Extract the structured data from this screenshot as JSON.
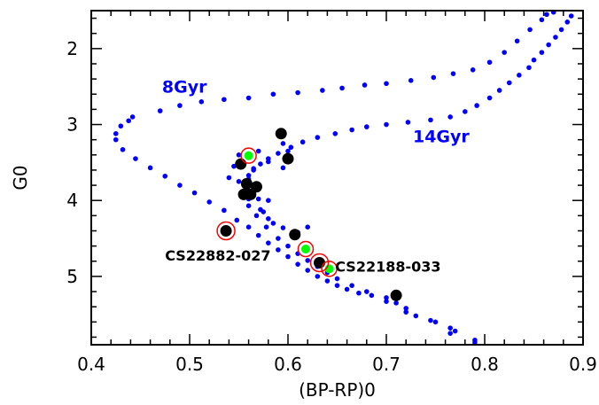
{
  "chart_data": {
    "type": "scatter",
    "xlabel": "(BP-RP)0",
    "ylabel": "G0",
    "xlim": [
      0.4,
      0.9
    ],
    "ylim": [
      5.9,
      1.5
    ],
    "y_inverted": true,
    "grid": false,
    "x_ticks": [
      0.4,
      0.5,
      0.6,
      0.7,
      0.8,
      0.9
    ],
    "x_tick_labels": [
      "0.4",
      "0.5",
      "0.6",
      "0.7",
      "0.8",
      "0.9"
    ],
    "y_ticks": [
      2,
      3,
      4,
      5
    ],
    "y_tick_labels": [
      "2",
      "3",
      "4",
      "5"
    ],
    "colors": {
      "isochrone": "#0000ff",
      "stars": "#000000",
      "highlight_fill": "#00ff00",
      "highlight_ring": "#ff0000"
    },
    "isochrone_labels": [
      {
        "text": "8Gyr",
        "x": 0.472,
        "y": 2.5
      },
      {
        "text": "14Gyr",
        "x": 0.727,
        "y": 3.15
      }
    ],
    "series": [
      {
        "style": "small-blue-dots",
        "points": [
          [
            0.79,
            5.87
          ],
          [
            0.77,
            5.72
          ],
          [
            0.765,
            5.75
          ],
          [
            0.75,
            5.6
          ],
          [
            0.73,
            5.52
          ],
          [
            0.72,
            5.42
          ],
          [
            0.71,
            5.35
          ],
          [
            0.7,
            5.28
          ],
          [
            0.685,
            5.25
          ],
          [
            0.672,
            5.22
          ],
          [
            0.66,
            5.17
          ],
          [
            0.65,
            5.12
          ],
          [
            0.64,
            5.06
          ],
          [
            0.63,
            5.0
          ],
          [
            0.62,
            4.92
          ],
          [
            0.61,
            4.84
          ],
          [
            0.6,
            4.74
          ],
          [
            0.59,
            4.65
          ],
          [
            0.58,
            4.56
          ],
          [
            0.57,
            4.46
          ],
          [
            0.56,
            4.35
          ],
          [
            0.548,
            4.26
          ],
          [
            0.535,
            4.13
          ],
          [
            0.52,
            4.02
          ],
          [
            0.505,
            3.9
          ],
          [
            0.49,
            3.8
          ],
          [
            0.475,
            3.68
          ],
          [
            0.46,
            3.57
          ],
          [
            0.445,
            3.45
          ],
          [
            0.432,
            3.33
          ],
          [
            0.425,
            3.2
          ],
          [
            0.425,
            3.12
          ],
          [
            0.43,
            3.02
          ],
          [
            0.438,
            2.95
          ],
          [
            0.442,
            2.9
          ],
          [
            0.47,
            2.82
          ],
          [
            0.49,
            2.75
          ],
          [
            0.512,
            2.7
          ],
          [
            0.535,
            2.67
          ],
          [
            0.56,
            2.65
          ],
          [
            0.585,
            2.6
          ],
          [
            0.61,
            2.58
          ],
          [
            0.635,
            2.55
          ],
          [
            0.655,
            2.52
          ],
          [
            0.678,
            2.48
          ],
          [
            0.7,
            2.46
          ],
          [
            0.725,
            2.42
          ],
          [
            0.748,
            2.38
          ],
          [
            0.768,
            2.33
          ],
          [
            0.788,
            2.28
          ],
          [
            0.805,
            2.18
          ],
          [
            0.82,
            2.05
          ],
          [
            0.833,
            1.9
          ],
          [
            0.846,
            1.75
          ],
          [
            0.858,
            1.62
          ],
          [
            0.863,
            1.55
          ],
          [
            0.87,
            1.52
          ],
          [
            0.79,
            5.84
          ],
          [
            0.765,
            5.68
          ],
          [
            0.745,
            5.58
          ],
          [
            0.72,
            5.47
          ],
          [
            0.7,
            5.33
          ],
          [
            0.68,
            5.2
          ],
          [
            0.665,
            5.12
          ],
          [
            0.65,
            5.03
          ],
          [
            0.64,
            4.95
          ],
          [
            0.63,
            4.87
          ],
          [
            0.62,
            4.79
          ],
          [
            0.61,
            4.7
          ],
          [
            0.6,
            4.6
          ],
          [
            0.59,
            4.5
          ],
          [
            0.578,
            4.35
          ],
          [
            0.568,
            4.2
          ],
          [
            0.56,
            4.07
          ],
          [
            0.557,
            3.95
          ],
          [
            0.557,
            3.84
          ],
          [
            0.56,
            3.72
          ],
          [
            0.565,
            3.6
          ],
          [
            0.572,
            3.52
          ],
          [
            0.58,
            3.45
          ],
          [
            0.59,
            3.38
          ],
          [
            0.603,
            3.3
          ],
          [
            0.615,
            3.23
          ],
          [
            0.63,
            3.17
          ],
          [
            0.648,
            3.12
          ],
          [
            0.665,
            3.07
          ],
          [
            0.68,
            3.03
          ],
          [
            0.7,
            3.0
          ],
          [
            0.722,
            2.97
          ],
          [
            0.745,
            2.94
          ],
          [
            0.765,
            2.9
          ],
          [
            0.78,
            2.83
          ],
          [
            0.792,
            2.75
          ],
          [
            0.805,
            2.65
          ],
          [
            0.815,
            2.55
          ],
          [
            0.825,
            2.45
          ],
          [
            0.835,
            2.35
          ],
          [
            0.845,
            2.25
          ],
          [
            0.85,
            2.15
          ],
          [
            0.858,
            2.05
          ],
          [
            0.865,
            1.95
          ],
          [
            0.872,
            1.85
          ],
          [
            0.878,
            1.75
          ],
          [
            0.884,
            1.65
          ],
          [
            0.888,
            1.57
          ],
          [
            0.61,
            4.42
          ],
          [
            0.62,
            4.35
          ],
          [
            0.572,
            4.12
          ],
          [
            0.56,
            3.98
          ],
          [
            0.56,
            3.67
          ],
          [
            0.565,
            3.58
          ],
          [
            0.595,
            3.57
          ],
          [
            0.58,
            3.49
          ],
          [
            0.6,
            3.35
          ],
          [
            0.595,
            3.25
          ],
          [
            0.57,
            3.35
          ],
          [
            0.55,
            3.4
          ],
          [
            0.545,
            3.55
          ],
          [
            0.54,
            3.7
          ],
          [
            0.55,
            3.75
          ],
          [
            0.57,
            3.98
          ],
          [
            0.58,
            4.0
          ],
          [
            0.575,
            4.15
          ],
          [
            0.58,
            4.24
          ],
          [
            0.585,
            4.3
          ],
          [
            0.595,
            4.36
          ]
        ]
      },
      {
        "style": "large-black-dots",
        "points": [
          [
            0.537,
            4.4
          ],
          [
            0.552,
            3.52
          ],
          [
            0.558,
            3.78
          ],
          [
            0.555,
            3.92
          ],
          [
            0.562,
            3.92
          ],
          [
            0.568,
            3.82
          ],
          [
            0.593,
            3.12
          ],
          [
            0.6,
            3.45
          ],
          [
            0.607,
            4.45
          ],
          [
            0.632,
            4.82
          ],
          [
            0.71,
            5.25
          ]
        ]
      },
      {
        "style": "green-with-red-ring",
        "points": [
          [
            0.56,
            3.41
          ],
          [
            0.618,
            4.64
          ],
          [
            0.642,
            4.9
          ]
        ]
      },
      {
        "style": "red-ring-only",
        "points": [
          [
            0.537,
            4.4
          ],
          [
            0.632,
            4.82
          ]
        ]
      }
    ],
    "annotations": [
      {
        "text": "CS22882-027",
        "x": 0.475,
        "y": 4.72
      },
      {
        "text": "CS22188-033",
        "x": 0.648,
        "y": 4.87
      }
    ]
  }
}
